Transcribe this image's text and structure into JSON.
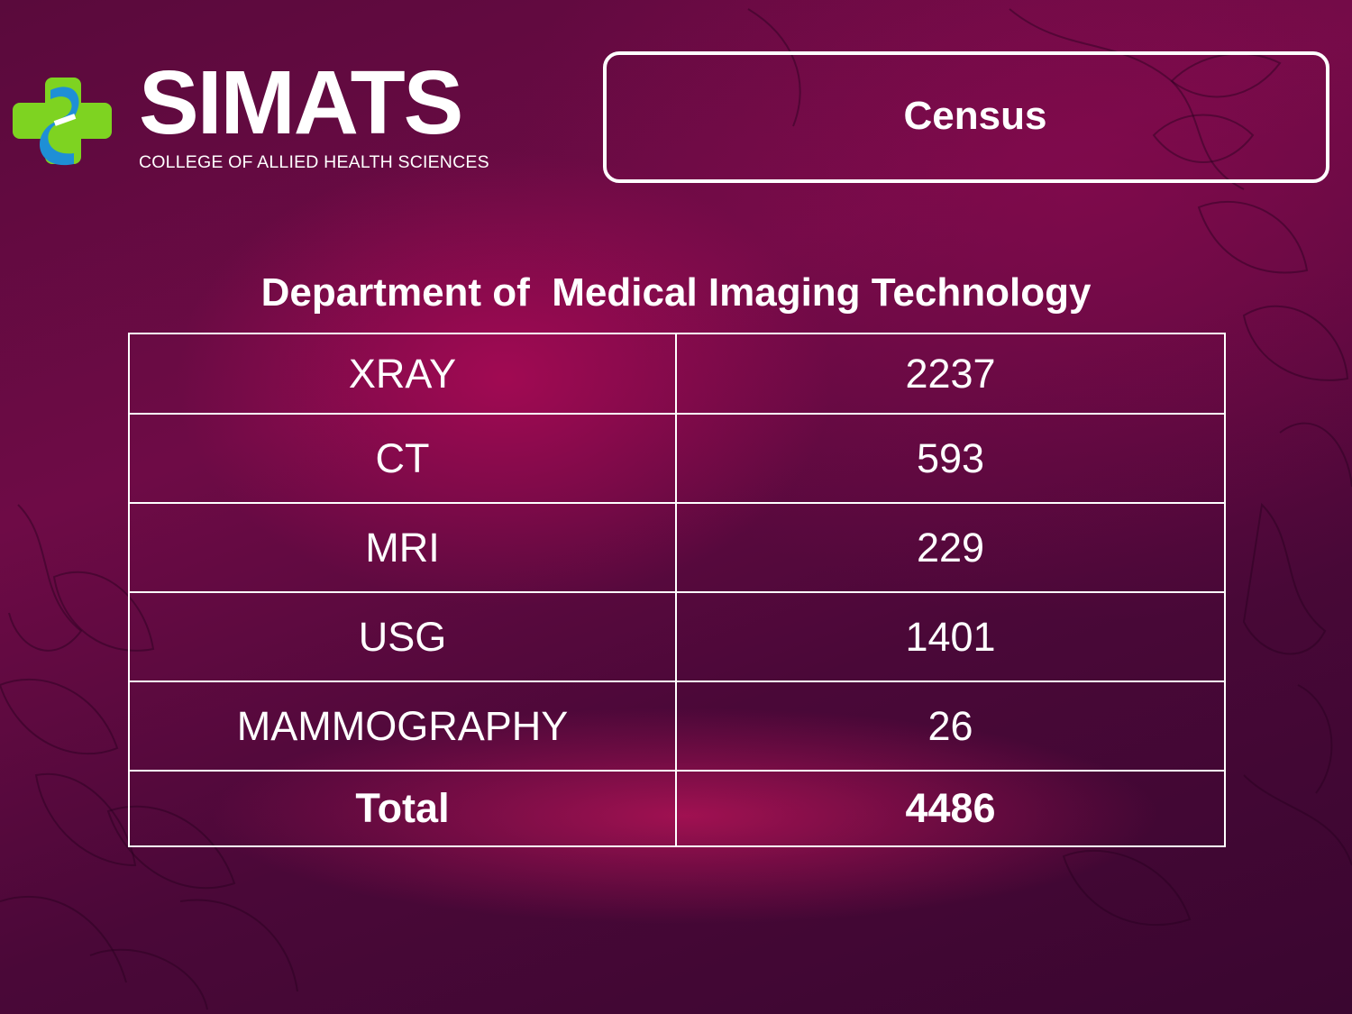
{
  "logo": {
    "wordmark": "SIMATS",
    "subtitle": "COLLEGE OF ALLIED HEALTH SCIENCES",
    "mark_icon": "cross-logo-icon"
  },
  "header": {
    "title": "Census"
  },
  "department": {
    "title": "Department of  Medical Imaging Technology"
  },
  "table": {
    "rows": [
      {
        "label": "XRAY",
        "value": "2237"
      },
      {
        "label": "CT",
        "value": "593"
      },
      {
        "label": "MRI",
        "value": "229"
      },
      {
        "label": "USG",
        "value": "1401"
      },
      {
        "label": "MAMMOGRAPHY",
        "value": "26"
      }
    ],
    "total": {
      "label": "Total",
      "value": "4486"
    }
  },
  "colors": {
    "background": "#5a0a3c",
    "accent": "#a00a58",
    "logo_green": "#7ed321",
    "logo_blue": "#1e8fd6",
    "text": "#ffffff"
  }
}
